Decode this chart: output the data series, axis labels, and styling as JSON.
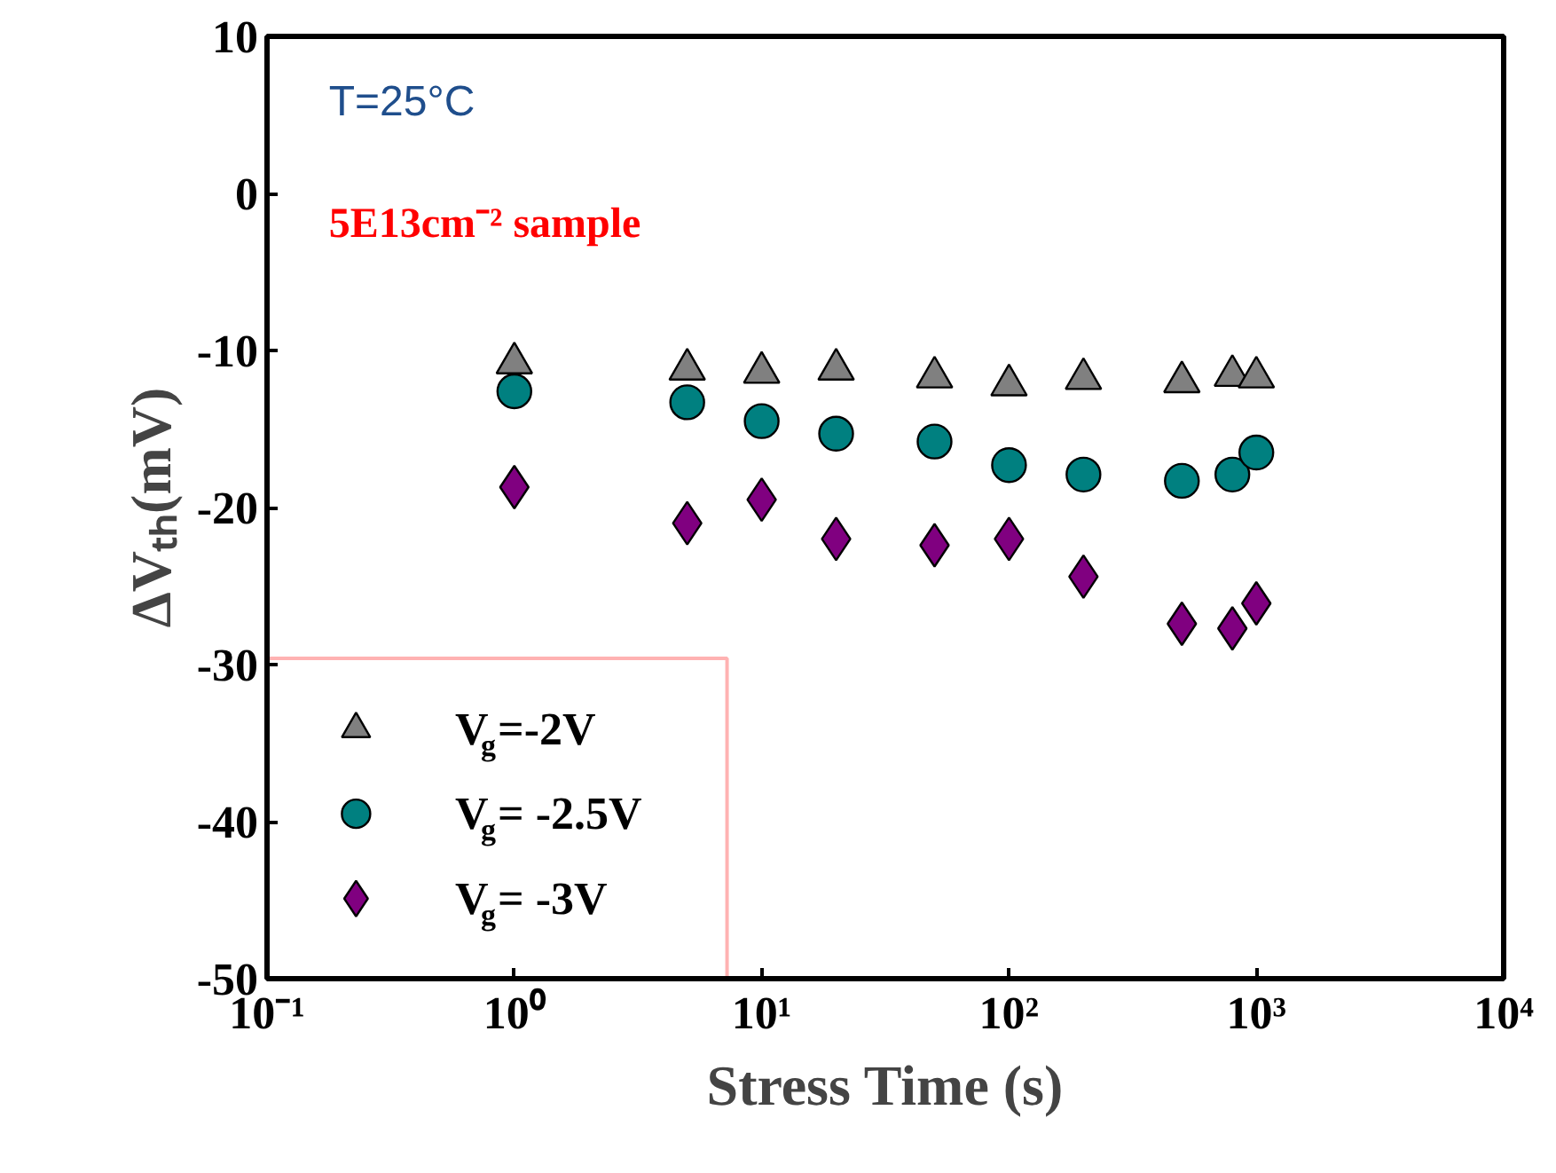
{
  "chart_data": {
    "type": "scatter",
    "xlabel": "Stress Time (s)",
    "ylabel": "ΔVₜₕ(mV)",
    "log": "x",
    "grid": false,
    "legend": "bottom left",
    "xlim": [
      0.1,
      10000
    ],
    "xticks": [
      {
        "value": 0.1,
        "label": "10⁻¹"
      },
      {
        "value": 1,
        "label": "10⁰"
      },
      {
        "value": 10,
        "label": "10¹"
      },
      {
        "value": 100,
        "label": "10²"
      },
      {
        "value": 1000,
        "label": "10³"
      },
      {
        "value": 10000,
        "label": "10⁴"
      }
    ],
    "ylim": [
      -50,
      10
    ],
    "yticks": [
      -50,
      -40,
      -30,
      -20,
      -10,
      0,
      10
    ],
    "x": [
      1,
      5,
      10,
      20,
      50,
      100,
      200,
      500,
      800,
      1000
    ],
    "series": [
      {
        "name": "V$_{g}$=-2V",
        "color": "#808080",
        "marker": "triangle",
        "values": [
          -10.8,
          -11.2,
          -11.4,
          -11.2,
          -11.7,
          -12.2,
          -11.8,
          -12.0,
          -11.6,
          -11.7
        ]
      },
      {
        "name": "V$_{g}$= -2.5V",
        "color": "#008080",
        "marker": "circle",
        "values": [
          -12.6,
          -13.3,
          -14.5,
          -15.3,
          -15.8,
          -17.3,
          -17.9,
          -18.3,
          -17.9,
          -16.5
        ]
      },
      {
        "name": "V$_{g}$= -3V",
        "color": "#800080",
        "marker": "diamond",
        "values": [
          -18.7,
          -21.0,
          -19.5,
          -22.0,
          -22.4,
          -22.0,
          -24.4,
          -27.4,
          -27.7,
          -26.1
        ]
      }
    ],
    "annotations": [
      "T=25°C",
      "5E13cm⁻² sample"
    ]
  }
}
